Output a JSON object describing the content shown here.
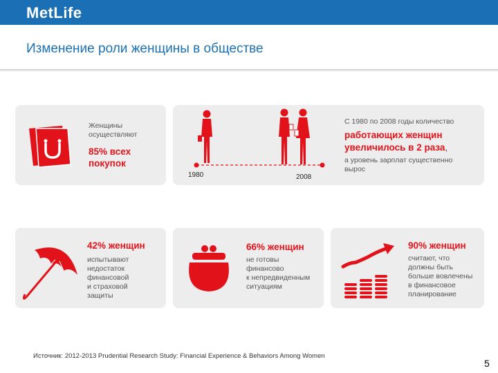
{
  "header": {
    "logo": "MetLife",
    "title": "Изменение роли женщины в обществе"
  },
  "card1": {
    "line1": "Женщины",
    "line2": "осуществляют",
    "big1": "85% всех",
    "big2": "покупок"
  },
  "card2": {
    "year_left": "1980",
    "year_right": "2008",
    "text1": "С 1980 по 2008 годы количество",
    "big1": "работающих женщин",
    "big2": "увеличилось в 2 раза",
    "big_end": ",",
    "text2": "а уровень зарплат существенно",
    "text3": "вырос"
  },
  "card3": {
    "big": "42% женщин",
    "lines": [
      "испытывают",
      "недостаток",
      "финансовой",
      "и страховой",
      "защиты"
    ]
  },
  "card4": {
    "big": "66% женщин",
    "lines": [
      "не готовы",
      "финансово",
      "к непредвиденным",
      "ситуациям"
    ]
  },
  "card5": {
    "big": "90% женщин",
    "lines": [
      "считают, что",
      "должны быть",
      "больше вовлечены",
      "в финансовое",
      "планирование"
    ]
  },
  "footer": {
    "source": "Источник: 2012-2013 Prudential Research Study: Financial Experience & Behaviors Among Women",
    "page": "5"
  },
  "colors": {
    "brand_blue": "#1a6fb5",
    "accent_red": "#e2121b",
    "card_bg": "#ededed"
  }
}
